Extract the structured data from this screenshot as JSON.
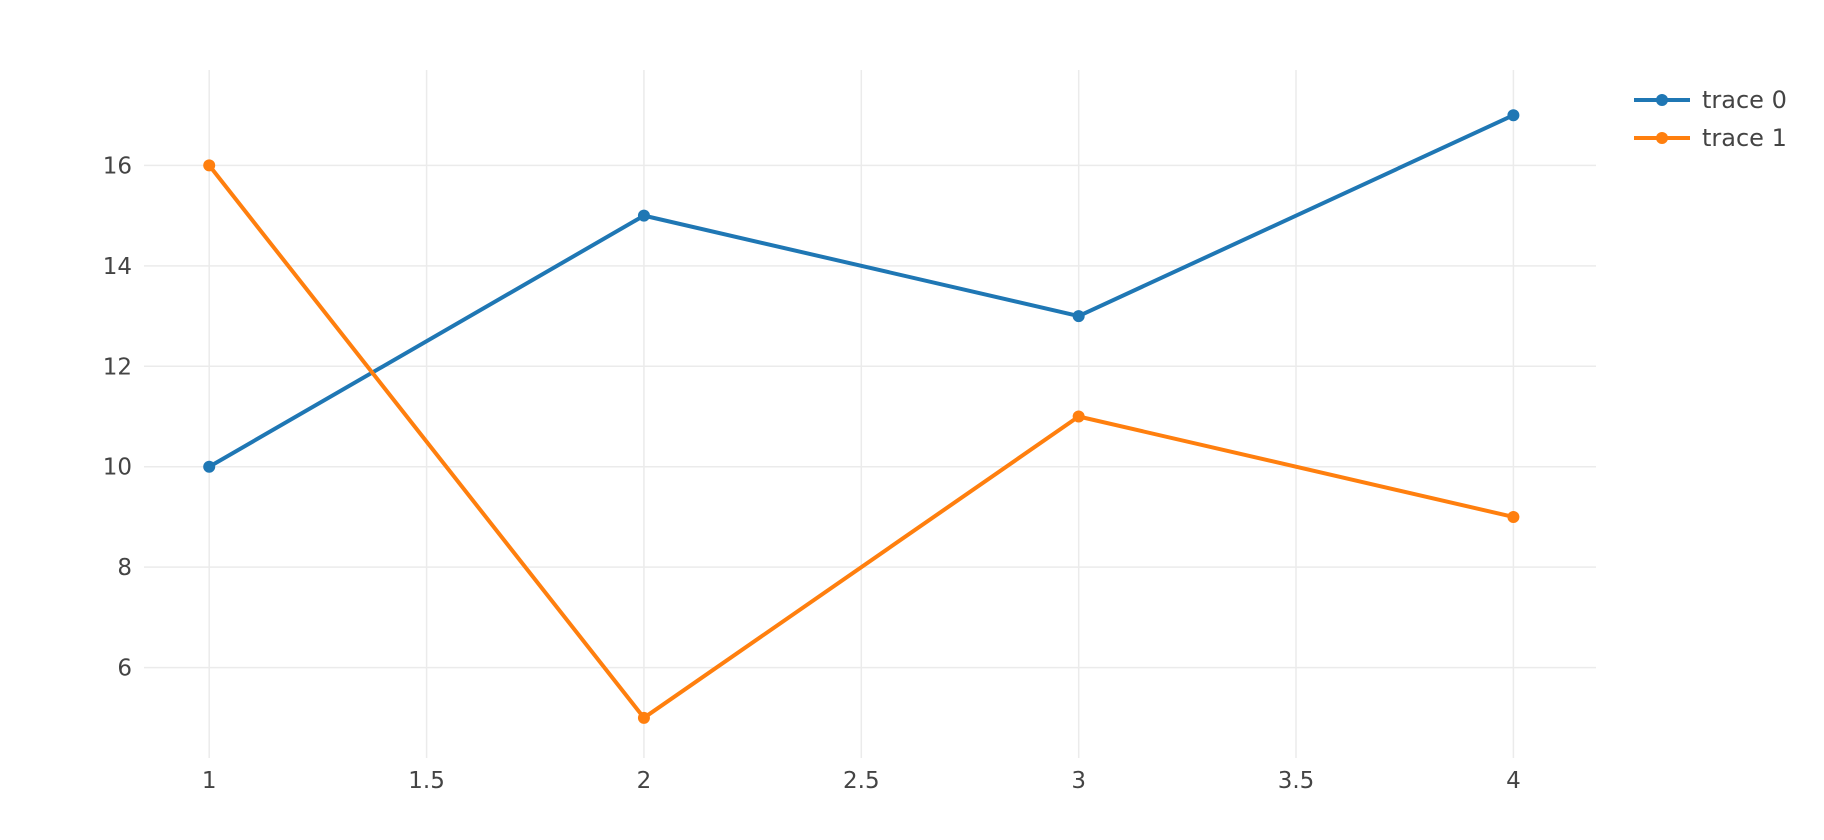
{
  "colors": {
    "trace0": "#1f77b4",
    "trace1": "#ff7f0e",
    "grid": "#ebebeb",
    "text": "#444444"
  },
  "legend": {
    "items": [
      "trace 0",
      "trace 1"
    ],
    "position": "top-right"
  },
  "chart_data": {
    "type": "line",
    "title": "",
    "xlabel": "",
    "ylabel": "",
    "x_ticks": [
      "1",
      "1.5",
      "2",
      "2.5",
      "3",
      "3.5",
      "4"
    ],
    "y_ticks": [
      "6",
      "8",
      "10",
      "12",
      "14",
      "16"
    ],
    "xlim": [
      0.85,
      4.19
    ],
    "ylim": [
      4.2,
      17.9
    ],
    "grid": true,
    "markers": true,
    "series": [
      {
        "name": "trace 0",
        "x": [
          1,
          2,
          3,
          4
        ],
        "y": [
          10,
          15,
          13,
          17
        ]
      },
      {
        "name": "trace 1",
        "x": [
          1,
          2,
          3,
          4
        ],
        "y": [
          16,
          5,
          11,
          9
        ]
      }
    ]
  }
}
